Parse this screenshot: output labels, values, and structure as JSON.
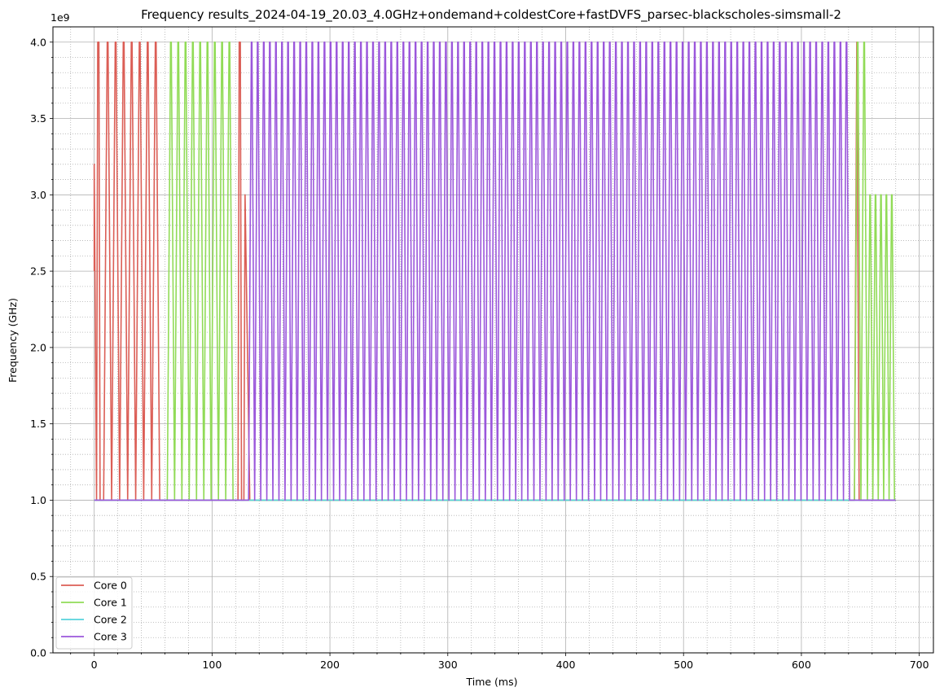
{
  "chart_data": {
    "type": "line",
    "title": "Frequency results_2024-04-19_20.03_4.0GHz+ondemand+coldestCore+fastDVFS_parsec-blackscholes-simsmall-2",
    "xlabel": "Time (ms)",
    "ylabel": "Frequency (GHz)",
    "y_offset_label": "1e9",
    "xlim": [
      -35,
      712
    ],
    "ylim": [
      0,
      4100000000.0
    ],
    "x_ticks": [
      0,
      100,
      200,
      300,
      400,
      500,
      600,
      700
    ],
    "x_tick_labels": [
      "0",
      "100",
      "200",
      "300",
      "400",
      "500",
      "600",
      "700"
    ],
    "y_ticks": [
      0,
      500000000.0,
      1000000000.0,
      1500000000.0,
      2000000000.0,
      2500000000.0,
      3000000000.0,
      3500000000.0,
      4000000000.0
    ],
    "y_tick_labels": [
      "0.0",
      "0.5",
      "1.0",
      "1.5",
      "2.0",
      "2.5",
      "3.0",
      "3.5",
      "4.0"
    ],
    "grid": "major solid, minor dotted",
    "legend_position": "lower-left",
    "series": [
      {
        "name": "Core 0",
        "color": "#db5e56",
        "segments": [
          {
            "kind": "points",
            "points": [
              [
                0,
                2500000000.0
              ],
              [
                0,
                3200000000.0
              ],
              [
                2,
                1000000000.0
              ],
              [
                3,
                4000000000.0
              ],
              [
                4,
                4000000000.0
              ],
              [
                5,
                1000000000.0
              ],
              [
                8,
                1000000000.0
              ]
            ]
          },
          {
            "kind": "pulses",
            "start": 8,
            "end": 62,
            "period": 6.8,
            "high": 4000000000.0,
            "low": 1000000000.0
          },
          {
            "kind": "points",
            "points": [
              [
                62,
                1000000000.0
              ],
              [
                122,
                1000000000.0
              ],
              [
                123,
                4000000000.0
              ],
              [
                124,
                4000000000.0
              ],
              [
                125,
                1000000000.0
              ],
              [
                127,
                1000000000.0
              ],
              [
                128,
                3000000000.0
              ],
              [
                132,
                1000000000.0
              ]
            ]
          },
          {
            "kind": "points",
            "points": [
              [
                645,
                1000000000.0
              ],
              [
                647,
                4000000000.0
              ],
              [
                649,
                1000000000.0
              ],
              [
                680,
                1000000000.0
              ]
            ]
          }
        ]
      },
      {
        "name": "Core 1",
        "color": "#91db57",
        "segments": [
          {
            "kind": "points",
            "points": [
              [
                0,
                1000000000.0
              ],
              [
                62,
                1000000000.0
              ]
            ]
          },
          {
            "kind": "pulses",
            "start": 62,
            "end": 122,
            "period": 6.2,
            "high": 4000000000.0,
            "low": 1000000000.0
          },
          {
            "kind": "points",
            "points": [
              [
                122,
                1000000000.0
              ],
              [
                645,
                1000000000.0
              ]
            ]
          },
          {
            "kind": "pulses",
            "start": 645,
            "end": 656,
            "period": 5.5,
            "high": 4000000000.0,
            "low": 1000000000.0
          },
          {
            "kind": "pulses",
            "start": 656,
            "end": 680,
            "period": 4.6,
            "high": 3000000000.0,
            "low": 1000000000.0
          },
          {
            "kind": "points",
            "points": [
              [
                680,
                1000000000.0
              ]
            ]
          }
        ]
      },
      {
        "name": "Core 2",
        "color": "#57d3db",
        "segments": [
          {
            "kind": "points",
            "points": [
              [
                0,
                1000000000.0
              ],
              [
                680,
                1000000000.0
              ]
            ]
          }
        ]
      },
      {
        "name": "Core 3",
        "color": "#9b57db",
        "segments": [
          {
            "kind": "points",
            "points": [
              [
                0,
                1000000000.0
              ],
              [
                130,
                1000000000.0
              ]
            ]
          },
          {
            "kind": "pulses",
            "start": 131,
            "end": 645,
            "period": 5.15,
            "high": 4000000000.0,
            "low": 1000000000.0
          },
          {
            "kind": "points",
            "points": [
              [
                645,
                1000000000.0
              ],
              [
                680,
                1000000000.0
              ]
            ]
          }
        ]
      }
    ]
  }
}
